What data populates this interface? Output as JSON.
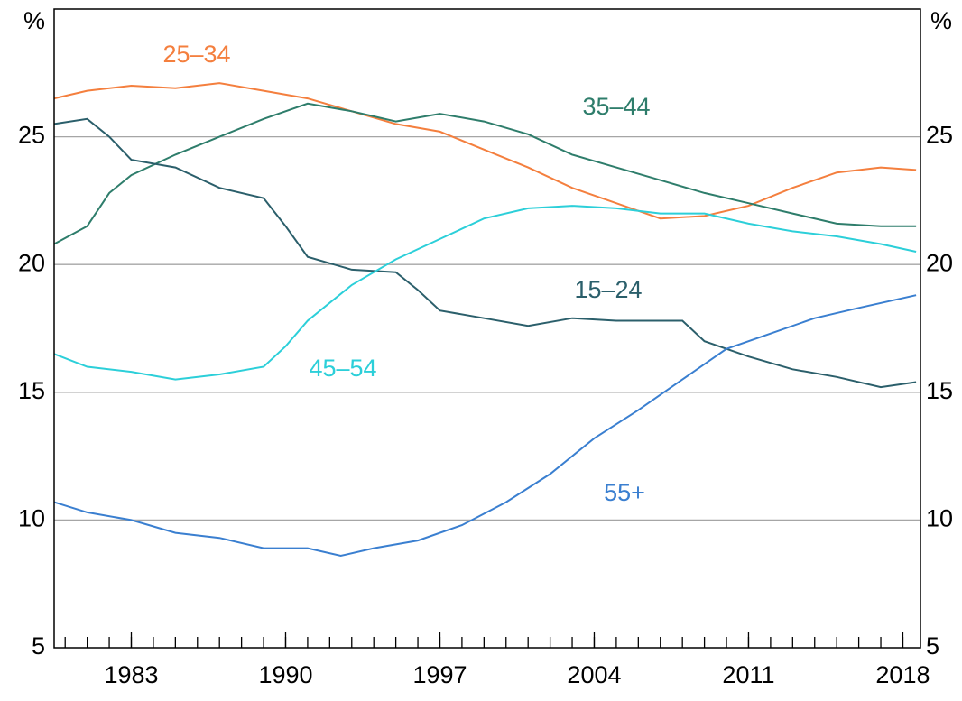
{
  "chart_data": {
    "type": "line",
    "ylabel": "%",
    "y2label": "%",
    "xlim": [
      1979.5,
      2018.8
    ],
    "xticks": [
      1983,
      1990,
      1997,
      2004,
      2011,
      2018
    ],
    "ylim": [
      5,
      30
    ],
    "yticks": [
      5,
      10,
      15,
      20,
      25
    ],
    "y2lim": [
      5,
      30
    ],
    "y2ticks": [
      5,
      10,
      15,
      20,
      25
    ],
    "grid": true,
    "series": [
      {
        "name": "25–34",
        "color": "#f47f3e",
        "x": [
          1979.5,
          1981,
          1983,
          1985,
          1987,
          1989,
          1991,
          1993,
          1995,
          1997,
          1999,
          2001,
          2003,
          2005,
          2007,
          2009,
          2011,
          2013,
          2015,
          2017,
          2018.6
        ],
        "values": [
          26.5,
          26.8,
          27.0,
          26.9,
          27.1,
          26.8,
          26.5,
          26.0,
          25.5,
          25.2,
          24.5,
          23.8,
          23.0,
          22.4,
          21.8,
          21.9,
          22.3,
          23.0,
          23.6,
          23.8,
          23.7
        ]
      },
      {
        "name": "35–44",
        "color": "#2e7d6b",
        "x": [
          1979.5,
          1981,
          1982,
          1983,
          1985,
          1987,
          1989,
          1991,
          1993,
          1995,
          1997,
          1999,
          2001,
          2003,
          2005,
          2007,
          2009,
          2011,
          2013,
          2015,
          2017,
          2018.6
        ],
        "values": [
          20.8,
          21.5,
          22.8,
          23.5,
          24.3,
          25.0,
          25.7,
          26.3,
          26.0,
          25.6,
          25.9,
          25.6,
          25.1,
          24.3,
          23.8,
          23.3,
          22.8,
          22.4,
          22.0,
          21.6,
          21.5,
          21.5
        ]
      },
      {
        "name": "15–24",
        "color": "#2b5f6b",
        "x": [
          1979.5,
          1981,
          1982,
          1983,
          1985,
          1987,
          1989,
          1990,
          1991,
          1993,
          1995,
          1996,
          1997,
          1999,
          2001,
          2003,
          2005,
          2007,
          2008,
          2009,
          2011,
          2013,
          2015,
          2017,
          2018.6
        ],
        "values": [
          25.5,
          25.7,
          25.0,
          24.1,
          23.8,
          23.0,
          22.6,
          21.5,
          20.3,
          19.8,
          19.7,
          19.0,
          18.2,
          17.9,
          17.6,
          17.9,
          17.8,
          17.8,
          17.8,
          17.0,
          16.4,
          15.9,
          15.6,
          15.2,
          15.4
        ]
      },
      {
        "name": "45–54",
        "color": "#2ccfd9",
        "x": [
          1979.5,
          1981,
          1983,
          1985,
          1987,
          1989,
          1990,
          1991,
          1993,
          1995,
          1997,
          1999,
          2001,
          2003,
          2005,
          2007,
          2009,
          2011,
          2013,
          2015,
          2017,
          2018.6
        ],
        "values": [
          16.5,
          16.0,
          15.8,
          15.5,
          15.7,
          16.0,
          16.8,
          17.8,
          19.2,
          20.2,
          21.0,
          21.8,
          22.2,
          22.3,
          22.2,
          22.0,
          22.0,
          21.6,
          21.3,
          21.1,
          20.8,
          20.5
        ]
      },
      {
        "name": "55+",
        "color": "#3a7fd0",
        "x": [
          1979.5,
          1981,
          1983,
          1985,
          1987,
          1989,
          1991,
          1992.5,
          1994,
          1996,
          1998,
          2000,
          2002,
          2004,
          2006,
          2008,
          2010,
          2012,
          2014,
          2016,
          2018.6
        ],
        "values": [
          10.7,
          10.3,
          10.0,
          9.5,
          9.3,
          8.9,
          8.9,
          8.6,
          8.9,
          9.2,
          9.8,
          10.7,
          11.8,
          13.2,
          14.3,
          15.5,
          16.7,
          17.3,
          17.9,
          18.3,
          18.8
        ]
      }
    ]
  }
}
